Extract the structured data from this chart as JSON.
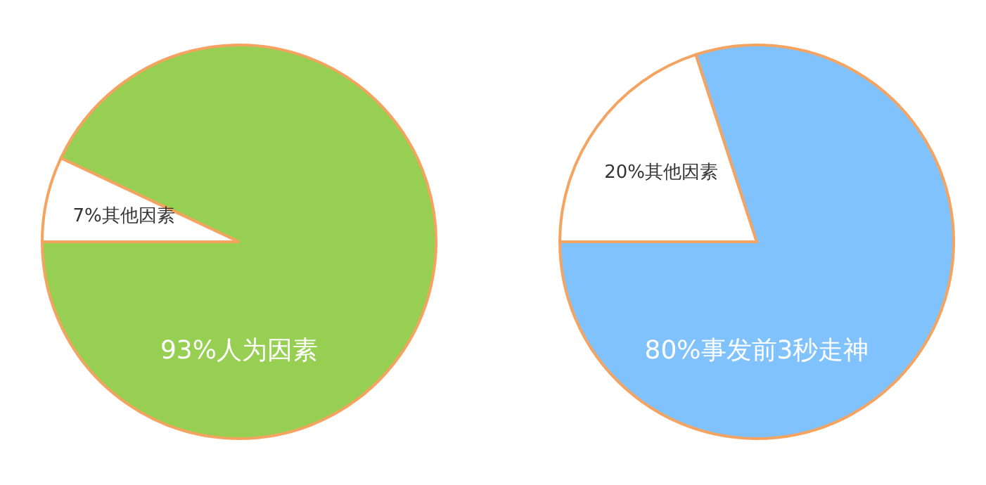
{
  "chart_data": [
    {
      "type": "pie",
      "categories": [
        "其他因素",
        "人为因素"
      ],
      "values": [
        7,
        93
      ],
      "colors": [
        "#ffffff",
        "#96cf52"
      ],
      "value_labels": [
        "7%",
        "93%"
      ]
    },
    {
      "type": "pie",
      "categories": [
        "其他因素",
        "事发前3秒走神"
      ],
      "values": [
        20,
        80
      ],
      "colors": [
        "#ffffff",
        "#80c2fd"
      ],
      "value_labels": [
        "20%",
        "80%"
      ]
    }
  ]
}
